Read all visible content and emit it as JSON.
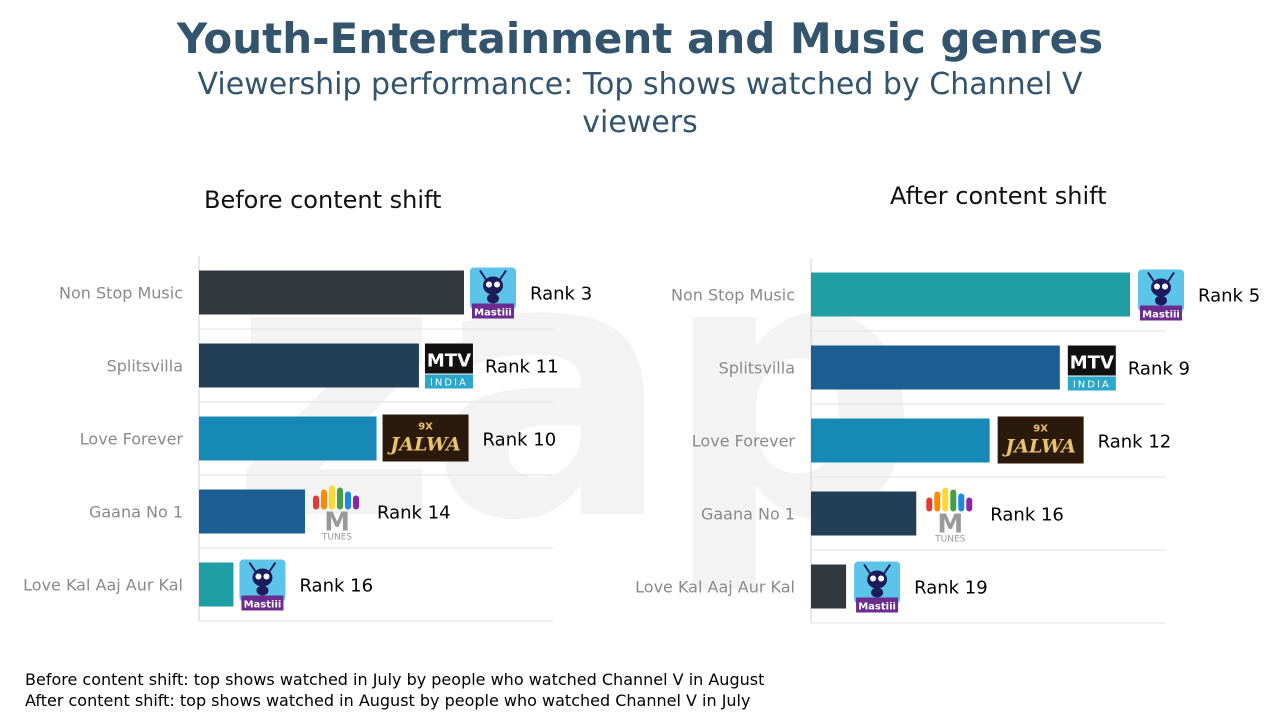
{
  "title": "Youth-Entertainment and Music genres",
  "subtitle": "Viewership performance: Top shows watched by Channel V viewers",
  "footer": {
    "line1": "Before content shift: top shows watched in July by people who watched Channel V in August",
    "line2": "After content shift: top shows watched in August by people who watched Channel V in July"
  },
  "colors": {
    "dark_slate": "#31393f",
    "navy": "#233f55",
    "blue": "#1a5e92",
    "sky": "#1789b7",
    "teal": "#1f9ea3"
  },
  "chart_data": [
    {
      "type": "bar",
      "orientation": "horizontal",
      "title": "Before content shift",
      "categories": [
        "Non Stop Music",
        "Splitsvilla",
        "Love Forever",
        "Gaana No 1",
        "Love Kal Aaj Aur Kal"
      ],
      "values": [
        100,
        83,
        67,
        40,
        13
      ],
      "bar_colors": [
        "#31393f",
        "#233f55",
        "#1789b7",
        "#1a5e92",
        "#1f9ea3"
      ],
      "channels": [
        "mastiii",
        "mtv-india",
        "9x-jalwa",
        "m-tunes",
        "mastiii"
      ],
      "rank_labels": [
        "Rank 3",
        "Rank 11",
        "Rank 10",
        "Rank 14",
        "Rank 16"
      ],
      "xlim": [
        0,
        100
      ]
    },
    {
      "type": "bar",
      "orientation": "horizontal",
      "title": "After content shift",
      "categories": [
        "Non Stop Music",
        "Splitsvilla",
        "Love Forever",
        "Gaana No 1",
        "Love Kal Aaj Aur Kal"
      ],
      "values": [
        100,
        78,
        56,
        33,
        11
      ],
      "bar_colors": [
        "#1f9ea3",
        "#1a5e92",
        "#1789b7",
        "#233f55",
        "#31393f"
      ],
      "channels": [
        "mastiii",
        "mtv-india",
        "9x-jalwa",
        "m-tunes",
        "mastiii"
      ],
      "rank_labels": [
        "Rank 5",
        "Rank 9",
        "Rank 12",
        "Rank 16",
        "Rank 19"
      ],
      "xlim": [
        0,
        100
      ]
    }
  ],
  "logos": {
    "mastiii": "Mastiii",
    "mtv_main": "MTV",
    "mtv_sub": "INDIA",
    "jalwa_prefix": "9X",
    "jalwa_main": "JALWA",
    "mtunes_sub": "TUNES"
  }
}
